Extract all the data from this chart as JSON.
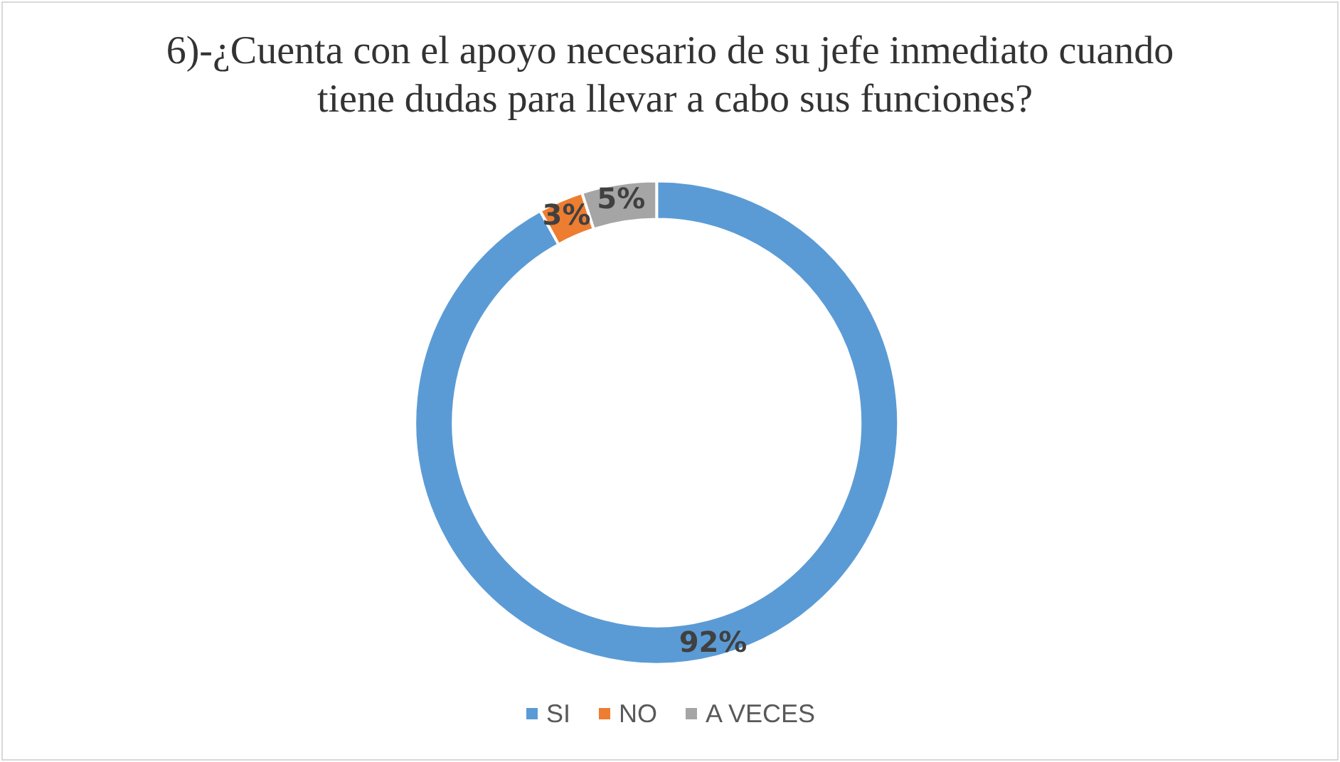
{
  "chart_data": {
    "type": "donut",
    "title": "6)-¿Cuenta con el apoyo necesario de su jefe inmediato cuando tiene dudas para llevar a cabo sus funciones?",
    "categories": [
      "SI",
      "NO",
      "A VECES"
    ],
    "values": [
      92,
      3,
      5
    ],
    "value_labels": [
      "92%",
      "3%",
      "5%"
    ],
    "colors": [
      "#5b9bd5",
      "#ed7d31",
      "#a5a5a5"
    ],
    "legend": "bottom"
  }
}
